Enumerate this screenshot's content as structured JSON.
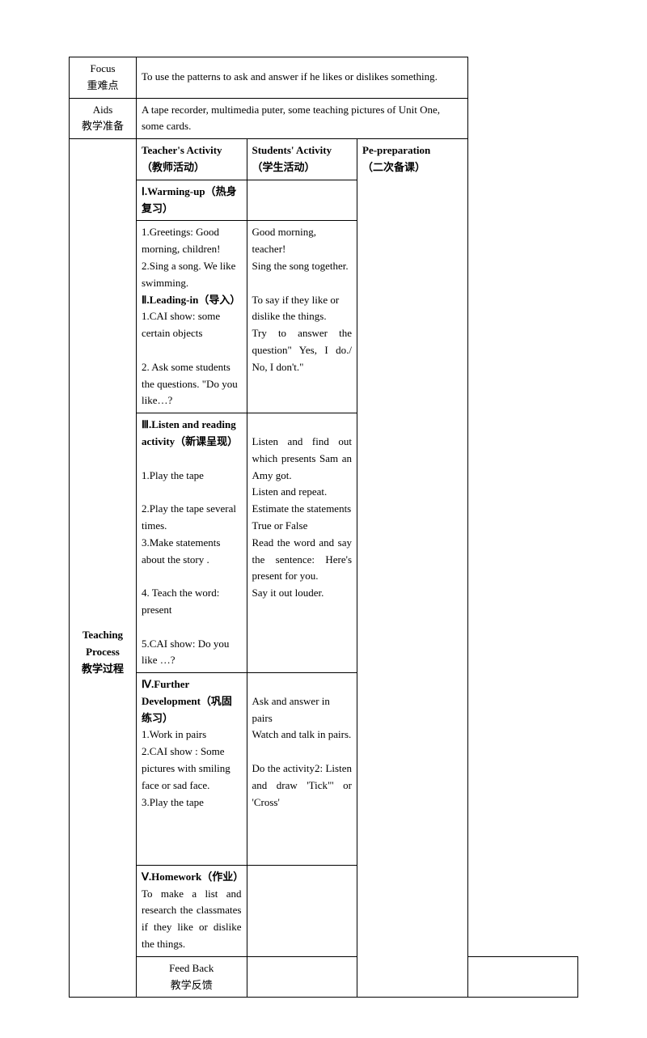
{
  "rows": {
    "focus": {
      "label_en": "Focus",
      "label_cn": "重难点",
      "content": "To use the patterns to ask and answer if he likes or dislikes something."
    },
    "aids": {
      "label_en": "Aids",
      "label_cn": "教学准备",
      "content": "A tape recorder, multimedia puter, some teaching pictures of Unit One, some cards."
    },
    "header": {
      "teacher": "Teacher's Activity",
      "teacher_cn": "（教师活动）",
      "student": "Students' Activity",
      "student_cn": "（学生活动）",
      "prep": "Pe-preparation",
      "prep_cn": "（二次备课）"
    },
    "process": {
      "label_line1": "Teaching",
      "label_line2": "Process",
      "label_cn": "教学过程"
    },
    "section1": {
      "title": "Ⅰ.Warming-up（热身复习）",
      "t1": "1.Greetings: Good morning, children!",
      "t2": "2.Sing a song. We like swimming.",
      "s1": "Good morning, teacher!",
      "s2": "Sing the song together."
    },
    "section2": {
      "title": "Ⅱ.Leading-in（导入）",
      "t1": "1.CAI show: some certain objects",
      "t2": "2. Ask some students the questions. \"Do you like…?",
      "s1": "To say if they like or dislike the things.",
      "s2": "Try to answer the question\" Yes, I do./ No, I don't.\""
    },
    "section3": {
      "title": "Ⅲ.Listen and reading activity（新课呈现）",
      "t1": "1.Play the tape",
      "t2": "2.Play the tape several times.",
      "t3": "3.Make statements about the story .",
      "t4": "4. Teach the word: present",
      "t5": "5.CAI show: Do you like  …?",
      "s1": "Listen and find out which presents Sam an Amy got.",
      "s2": "Listen and repeat.",
      "s3": "Estimate the statements True or False",
      "s4": "Read the word and say the sentence: Here's present for you.",
      "s5": "Say it out louder."
    },
    "section4": {
      "title": "Ⅳ.Further Development（巩固练习）",
      "t1": "1.Work in pairs",
      "t2": "2.CAI show : Some pictures with smiling face or sad face.",
      "t3": "3.Play the tape",
      "s1": "Ask and answer in pairs",
      "s2": "Watch and talk in pairs.",
      "s3": "Do the activity2: Listen and draw 'Tick\"' or 'Cross'"
    },
    "section5": {
      "title": "Ⅴ.Homework（作业）",
      "t1": "To make a list and research the classmates if they like or dislike the things."
    },
    "feedback": {
      "label_en": "Feed Back",
      "label_cn": "教学反馈"
    }
  }
}
